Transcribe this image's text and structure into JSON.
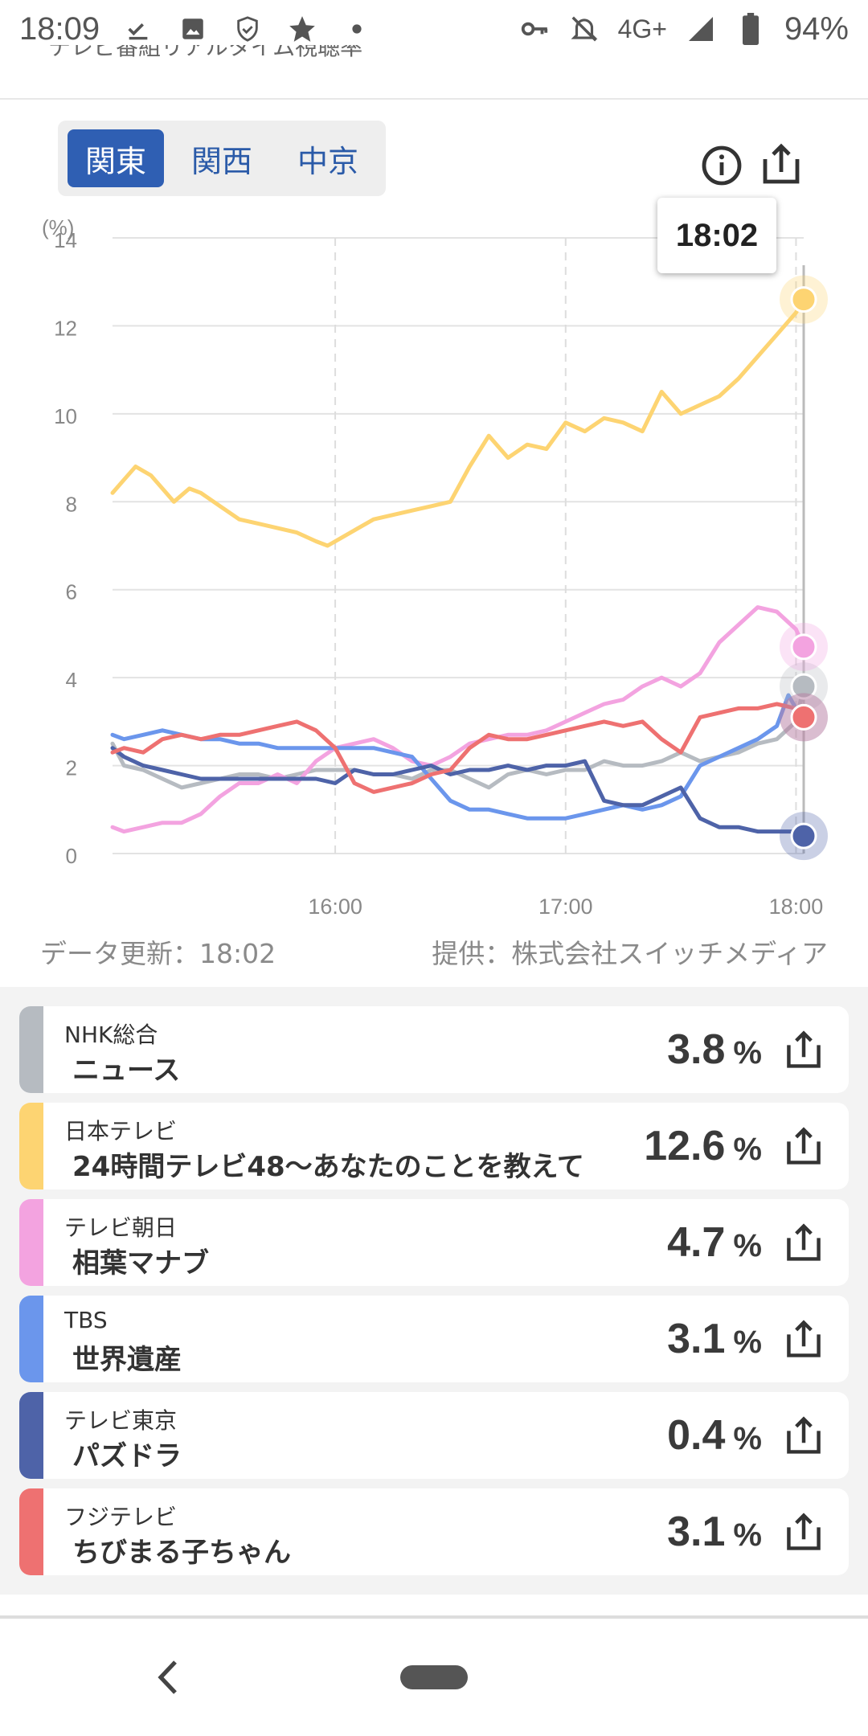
{
  "status": {
    "time": "18:09",
    "network": "4G+",
    "battery": "94%"
  },
  "header": {
    "subtitle": "テレビ番組リアルタイム視聴率"
  },
  "regions": [
    {
      "label": "関東",
      "active": true
    },
    {
      "label": "関西",
      "active": false
    },
    {
      "label": "中京",
      "active": false
    }
  ],
  "tooltip": {
    "time": "18:02"
  },
  "footer": {
    "update": "データ更新：18:02",
    "provider": "提供：株式会社スイッチメディア"
  },
  "chart_data": {
    "type": "line",
    "ylabel": "(%)",
    "ylim": [
      0,
      14
    ],
    "yticks": [
      "0",
      "2",
      "4",
      "6",
      "8",
      "10",
      "12",
      "14"
    ],
    "xticks": [
      {
        "label": "16:00",
        "minute": 960
      },
      {
        "label": "17:00",
        "minute": 1020
      },
      {
        "label": "18:00",
        "minute": 1080
      }
    ],
    "xrange": [
      902,
      1082
    ],
    "grid": true,
    "series": [
      {
        "name": "NHK総合",
        "color": "#b6bbc1",
        "points": [
          [
            902,
            2.5
          ],
          [
            905,
            2.0
          ],
          [
            910,
            1.9
          ],
          [
            915,
            1.7
          ],
          [
            920,
            1.5
          ],
          [
            925,
            1.6
          ],
          [
            930,
            1.7
          ],
          [
            935,
            1.8
          ],
          [
            940,
            1.8
          ],
          [
            945,
            1.7
          ],
          [
            950,
            1.8
          ],
          [
            955,
            1.9
          ],
          [
            960,
            1.9
          ],
          [
            965,
            1.9
          ],
          [
            970,
            1.8
          ],
          [
            975,
            1.8
          ],
          [
            980,
            1.7
          ],
          [
            985,
            1.9
          ],
          [
            990,
            1.9
          ],
          [
            995,
            1.7
          ],
          [
            1000,
            1.5
          ],
          [
            1005,
            1.8
          ],
          [
            1010,
            1.9
          ],
          [
            1015,
            1.8
          ],
          [
            1020,
            1.9
          ],
          [
            1025,
            1.9
          ],
          [
            1030,
            2.1
          ],
          [
            1035,
            2.0
          ],
          [
            1040,
            2.0
          ],
          [
            1045,
            2.1
          ],
          [
            1050,
            2.3
          ],
          [
            1055,
            2.1
          ],
          [
            1060,
            2.2
          ],
          [
            1065,
            2.3
          ],
          [
            1070,
            2.5
          ],
          [
            1075,
            2.6
          ],
          [
            1080,
            3.0
          ],
          [
            1082,
            3.8
          ]
        ]
      },
      {
        "name": "日本テレビ",
        "color": "#fdd472",
        "points": [
          [
            902,
            8.2
          ],
          [
            905,
            8.5
          ],
          [
            908,
            8.8
          ],
          [
            912,
            8.6
          ],
          [
            915,
            8.3
          ],
          [
            918,
            8.0
          ],
          [
            922,
            8.3
          ],
          [
            925,
            8.2
          ],
          [
            930,
            7.9
          ],
          [
            935,
            7.6
          ],
          [
            940,
            7.5
          ],
          [
            945,
            7.4
          ],
          [
            950,
            7.3
          ],
          [
            955,
            7.1
          ],
          [
            958,
            7.0
          ],
          [
            962,
            7.2
          ],
          [
            966,
            7.4
          ],
          [
            970,
            7.6
          ],
          [
            975,
            7.7
          ],
          [
            980,
            7.8
          ],
          [
            985,
            7.9
          ],
          [
            990,
            8.0
          ],
          [
            995,
            8.8
          ],
          [
            1000,
            9.5
          ],
          [
            1005,
            9.0
          ],
          [
            1010,
            9.3
          ],
          [
            1015,
            9.2
          ],
          [
            1020,
            9.8
          ],
          [
            1025,
            9.6
          ],
          [
            1030,
            9.9
          ],
          [
            1035,
            9.8
          ],
          [
            1040,
            9.6
          ],
          [
            1045,
            10.5
          ],
          [
            1050,
            10.0
          ],
          [
            1055,
            10.2
          ],
          [
            1060,
            10.4
          ],
          [
            1065,
            10.8
          ],
          [
            1070,
            11.3
          ],
          [
            1075,
            11.8
          ],
          [
            1080,
            12.3
          ],
          [
            1082,
            12.6
          ]
        ]
      },
      {
        "name": "テレビ朝日",
        "color": "#f3a3e0",
        "points": [
          [
            902,
            0.6
          ],
          [
            905,
            0.5
          ],
          [
            910,
            0.6
          ],
          [
            915,
            0.7
          ],
          [
            920,
            0.7
          ],
          [
            925,
            0.9
          ],
          [
            930,
            1.3
          ],
          [
            935,
            1.6
          ],
          [
            940,
            1.6
          ],
          [
            945,
            1.8
          ],
          [
            950,
            1.6
          ],
          [
            955,
            2.1
          ],
          [
            960,
            2.4
          ],
          [
            965,
            2.5
          ],
          [
            970,
            2.6
          ],
          [
            975,
            2.4
          ],
          [
            980,
            2.1
          ],
          [
            985,
            2.0
          ],
          [
            990,
            2.2
          ],
          [
            995,
            2.5
          ],
          [
            1000,
            2.6
          ],
          [
            1005,
            2.7
          ],
          [
            1010,
            2.7
          ],
          [
            1015,
            2.8
          ],
          [
            1020,
            3.0
          ],
          [
            1025,
            3.2
          ],
          [
            1030,
            3.4
          ],
          [
            1035,
            3.5
          ],
          [
            1040,
            3.8
          ],
          [
            1045,
            4.0
          ],
          [
            1050,
            3.8
          ],
          [
            1055,
            4.1
          ],
          [
            1060,
            4.8
          ],
          [
            1065,
            5.2
          ],
          [
            1070,
            5.6
          ],
          [
            1075,
            5.5
          ],
          [
            1080,
            5.1
          ],
          [
            1082,
            4.7
          ]
        ]
      },
      {
        "name": "TBS",
        "color": "#6b96ec",
        "points": [
          [
            902,
            2.7
          ],
          [
            905,
            2.6
          ],
          [
            910,
            2.7
          ],
          [
            915,
            2.8
          ],
          [
            920,
            2.7
          ],
          [
            925,
            2.6
          ],
          [
            930,
            2.6
          ],
          [
            935,
            2.5
          ],
          [
            940,
            2.5
          ],
          [
            945,
            2.4
          ],
          [
            950,
            2.4
          ],
          [
            955,
            2.4
          ],
          [
            960,
            2.4
          ],
          [
            965,
            2.4
          ],
          [
            970,
            2.4
          ],
          [
            975,
            2.3
          ],
          [
            980,
            2.2
          ],
          [
            985,
            1.7
          ],
          [
            990,
            1.2
          ],
          [
            995,
            1.0
          ],
          [
            1000,
            1.0
          ],
          [
            1005,
            0.9
          ],
          [
            1010,
            0.8
          ],
          [
            1015,
            0.8
          ],
          [
            1020,
            0.8
          ],
          [
            1025,
            0.9
          ],
          [
            1030,
            1.0
          ],
          [
            1035,
            1.1
          ],
          [
            1040,
            1.0
          ],
          [
            1045,
            1.1
          ],
          [
            1050,
            1.3
          ],
          [
            1055,
            2.0
          ],
          [
            1060,
            2.2
          ],
          [
            1065,
            2.4
          ],
          [
            1070,
            2.6
          ],
          [
            1075,
            2.9
          ],
          [
            1078,
            3.6
          ],
          [
            1080,
            3.3
          ],
          [
            1082,
            3.1
          ]
        ]
      },
      {
        "name": "テレビ東京",
        "color": "#4e63a8",
        "points": [
          [
            902,
            2.4
          ],
          [
            905,
            2.2
          ],
          [
            910,
            2.0
          ],
          [
            915,
            1.9
          ],
          [
            920,
            1.8
          ],
          [
            925,
            1.7
          ],
          [
            930,
            1.7
          ],
          [
            935,
            1.7
          ],
          [
            940,
            1.7
          ],
          [
            945,
            1.7
          ],
          [
            950,
            1.7
          ],
          [
            955,
            1.7
          ],
          [
            960,
            1.6
          ],
          [
            965,
            1.9
          ],
          [
            970,
            1.8
          ],
          [
            975,
            1.8
          ],
          [
            980,
            1.9
          ],
          [
            985,
            2.0
          ],
          [
            990,
            1.8
          ],
          [
            995,
            1.9
          ],
          [
            1000,
            1.9
          ],
          [
            1005,
            2.0
          ],
          [
            1010,
            1.9
          ],
          [
            1015,
            2.0
          ],
          [
            1020,
            2.0
          ],
          [
            1025,
            2.1
          ],
          [
            1030,
            1.2
          ],
          [
            1035,
            1.1
          ],
          [
            1040,
            1.1
          ],
          [
            1045,
            1.3
          ],
          [
            1050,
            1.5
          ],
          [
            1055,
            0.8
          ],
          [
            1060,
            0.6
          ],
          [
            1065,
            0.6
          ],
          [
            1070,
            0.5
          ],
          [
            1075,
            0.5
          ],
          [
            1080,
            0.5
          ],
          [
            1082,
            0.4
          ]
        ]
      },
      {
        "name": "フジテレビ",
        "color": "#ee7171",
        "points": [
          [
            902,
            2.3
          ],
          [
            905,
            2.4
          ],
          [
            910,
            2.3
          ],
          [
            915,
            2.6
          ],
          [
            920,
            2.7
          ],
          [
            925,
            2.6
          ],
          [
            930,
            2.7
          ],
          [
            935,
            2.7
          ],
          [
            940,
            2.8
          ],
          [
            945,
            2.9
          ],
          [
            950,
            3.0
          ],
          [
            955,
            2.8
          ],
          [
            960,
            2.4
          ],
          [
            965,
            1.6
          ],
          [
            970,
            1.4
          ],
          [
            975,
            1.5
          ],
          [
            980,
            1.6
          ],
          [
            985,
            1.8
          ],
          [
            990,
            1.9
          ],
          [
            995,
            2.4
          ],
          [
            1000,
            2.7
          ],
          [
            1005,
            2.6
          ],
          [
            1010,
            2.6
          ],
          [
            1015,
            2.7
          ],
          [
            1020,
            2.8
          ],
          [
            1025,
            2.9
          ],
          [
            1030,
            3.0
          ],
          [
            1035,
            2.9
          ],
          [
            1040,
            3.0
          ],
          [
            1045,
            2.6
          ],
          [
            1050,
            2.3
          ],
          [
            1055,
            3.1
          ],
          [
            1060,
            3.2
          ],
          [
            1065,
            3.3
          ],
          [
            1070,
            3.3
          ],
          [
            1075,
            3.4
          ],
          [
            1080,
            3.3
          ],
          [
            1082,
            3.1
          ]
        ]
      }
    ]
  },
  "channels": [
    {
      "channel": "NHK総合",
      "program": "ニュース",
      "rating": "3.8",
      "unit": "%",
      "color": "#b6bbc1"
    },
    {
      "channel": "日本テレビ",
      "program": "24時間テレビ48〜あなたのことを教えて",
      "rating": "12.6",
      "unit": "%",
      "color": "#fdd472"
    },
    {
      "channel": "テレビ朝日",
      "program": "相葉マナブ",
      "rating": "4.7",
      "unit": "%",
      "color": "#f3a3e0"
    },
    {
      "channel": "TBS",
      "program": "世界遺産",
      "rating": "3.1",
      "unit": "%",
      "color": "#6b96ec"
    },
    {
      "channel": "テレビ東京",
      "program": "パズドラ",
      "rating": "0.4",
      "unit": "%",
      "color": "#4e63a8"
    },
    {
      "channel": "フジテレビ",
      "program": "ちびまる子ちゃん",
      "rating": "3.1",
      "unit": "%",
      "color": "#ee7171"
    }
  ],
  "icons": {
    "status_left": [
      "download-done-icon",
      "image-icon",
      "shield-icon",
      "star-icon",
      "dot-icon"
    ],
    "status_right": [
      "key-icon",
      "bell-off-icon",
      "signal-icon",
      "battery-icon"
    ],
    "info": "info-icon",
    "share": "share-icon",
    "nav_back": "back-icon"
  }
}
